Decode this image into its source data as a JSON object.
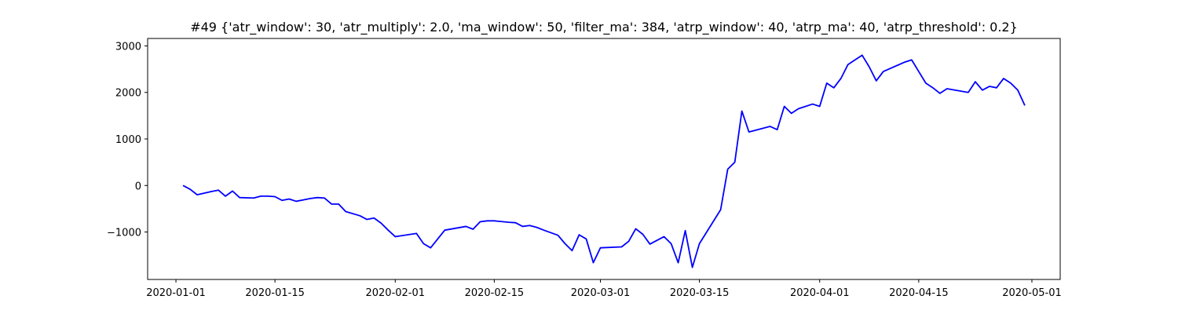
{
  "chart_data": {
    "type": "line",
    "title": "#49 {'atr_window': 30, 'atr_multiply': 2.0, 'ma_window': 50, 'filter_ma': 384, 'atrp_window': 40, 'atrp_ma': 40, 'atrp_threshold': 0.2}",
    "x": [
      "2020-01-02",
      "2020-01-03",
      "2020-01-04",
      "2020-01-06",
      "2020-01-07",
      "2020-01-08",
      "2020-01-09",
      "2020-01-10",
      "2020-01-12",
      "2020-01-13",
      "2020-01-14",
      "2020-01-15",
      "2020-01-16",
      "2020-01-17",
      "2020-01-18",
      "2020-01-20",
      "2020-01-21",
      "2020-01-22",
      "2020-01-23",
      "2020-01-24",
      "2020-01-25",
      "2020-01-27",
      "2020-01-28",
      "2020-01-29",
      "2020-01-30",
      "2020-01-31",
      "2020-02-01",
      "2020-02-04",
      "2020-02-05",
      "2020-02-06",
      "2020-02-07",
      "2020-02-08",
      "2020-02-11",
      "2020-02-12",
      "2020-02-13",
      "2020-02-14",
      "2020-02-15",
      "2020-02-17",
      "2020-02-18",
      "2020-02-19",
      "2020-02-20",
      "2020-02-21",
      "2020-02-22",
      "2020-02-24",
      "2020-02-25",
      "2020-02-26",
      "2020-02-27",
      "2020-02-28",
      "2020-02-29",
      "2020-03-01",
      "2020-03-04",
      "2020-03-05",
      "2020-03-06",
      "2020-03-07",
      "2020-03-08",
      "2020-03-10",
      "2020-03-11",
      "2020-03-12",
      "2020-03-13",
      "2020-03-14",
      "2020-03-15",
      "2020-03-18",
      "2020-03-19",
      "2020-03-20",
      "2020-03-21",
      "2020-03-22",
      "2020-03-25",
      "2020-03-26",
      "2020-03-27",
      "2020-03-28",
      "2020-03-29",
      "2020-03-31",
      "2020-04-01",
      "2020-04-02",
      "2020-04-03",
      "2020-04-04",
      "2020-04-05",
      "2020-04-06",
      "2020-04-07",
      "2020-04-08",
      "2020-04-09",
      "2020-04-10",
      "2020-04-13",
      "2020-04-14",
      "2020-04-15",
      "2020-04-16",
      "2020-04-17",
      "2020-04-18",
      "2020-04-19",
      "2020-04-22",
      "2020-04-23",
      "2020-04-24",
      "2020-04-25",
      "2020-04-26",
      "2020-04-27",
      "2020-04-28",
      "2020-04-29",
      "2020-04-30"
    ],
    "series": [
      {
        "color": "#0000ff",
        "values": [
          0,
          -80,
          -200,
          -130,
          -100,
          -230,
          -120,
          -260,
          -270,
          -230,
          -230,
          -240,
          -320,
          -290,
          -340,
          -280,
          -260,
          -270,
          -400,
          -400,
          -560,
          -650,
          -730,
          -700,
          -810,
          -960,
          -1100,
          -1030,
          -1250,
          -1340,
          -1150,
          -960,
          -880,
          -940,
          -780,
          -760,
          -760,
          -790,
          -800,
          -880,
          -860,
          -900,
          -960,
          -1070,
          -1250,
          -1400,
          -1060,
          -1150,
          -1660,
          -1340,
          -1320,
          -1200,
          -930,
          -1050,
          -1260,
          -1100,
          -1250,
          -1660,
          -970,
          -1760,
          -1250,
          -520,
          350,
          500,
          1600,
          1150,
          1270,
          1200,
          1700,
          1550,
          1650,
          1750,
          1700,
          2200,
          2100,
          2300,
          2600,
          2700,
          2800,
          2550,
          2250,
          2450,
          2650,
          2700,
          2450,
          2200,
          2100,
          1980,
          2080,
          2000,
          2230,
          2050,
          2130,
          2100,
          2300,
          2200,
          2050,
          1720
        ]
      }
    ],
    "xlim": [
      "2019-12-28",
      "2020-05-05"
    ],
    "xticks": [
      "2020-01-01",
      "2020-01-15",
      "2020-02-01",
      "2020-02-15",
      "2020-03-01",
      "2020-03-15",
      "2020-04-01",
      "2020-04-15",
      "2020-05-01"
    ],
    "ylim": [
      -2020,
      3160
    ],
    "yticks": [
      {
        "value": -1000,
        "label": "−1000"
      },
      0,
      1000,
      2000,
      3000
    ],
    "grid": false
  }
}
